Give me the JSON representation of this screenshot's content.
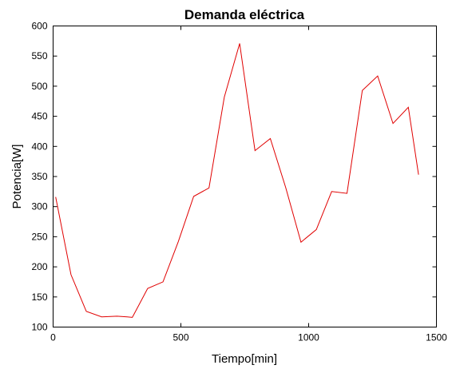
{
  "chart_data": {
    "type": "line",
    "title": "Demanda eléctrica",
    "xlabel": "Tiempo[min]",
    "ylabel": "Potencia[W]",
    "xlim": [
      0,
      1500
    ],
    "ylim": [
      100,
      600
    ],
    "xticks": [
      0,
      500,
      1000,
      1500
    ],
    "yticks": [
      100,
      150,
      200,
      250,
      300,
      350,
      400,
      450,
      500,
      550,
      600
    ],
    "grid": false,
    "series": [
      {
        "color": "#e00000",
        "x": [
          10,
          70,
          130,
          190,
          250,
          290,
          310,
          370,
          430,
          490,
          550,
          610,
          670,
          730,
          790,
          850,
          910,
          970,
          1030,
          1090,
          1150,
          1210,
          1270,
          1330,
          1390,
          1430
        ],
        "y": [
          316,
          187,
          126,
          117,
          118,
          117,
          116,
          164,
          175,
          242,
          317,
          331,
          482,
          571,
          393,
          413,
          332,
          241,
          262,
          325,
          322,
          493,
          517,
          438,
          465,
          353
        ]
      }
    ]
  }
}
